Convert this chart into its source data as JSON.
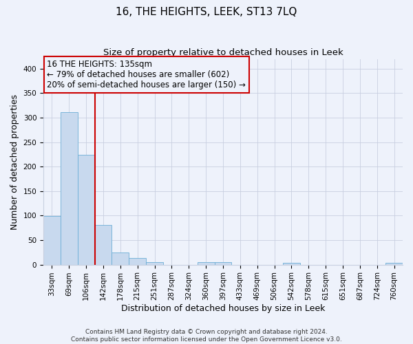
{
  "title": "16, THE HEIGHTS, LEEK, ST13 7LQ",
  "subtitle": "Size of property relative to detached houses in Leek",
  "xlabel": "Distribution of detached houses by size in Leek",
  "ylabel": "Number of detached properties",
  "bar_labels": [
    "33sqm",
    "69sqm",
    "106sqm",
    "142sqm",
    "178sqm",
    "215sqm",
    "251sqm",
    "287sqm",
    "324sqm",
    "360sqm",
    "397sqm",
    "433sqm",
    "469sqm",
    "506sqm",
    "542sqm",
    "578sqm",
    "615sqm",
    "651sqm",
    "687sqm",
    "724sqm",
    "760sqm"
  ],
  "bar_values": [
    99,
    311,
    224,
    81,
    25,
    14,
    5,
    0,
    0,
    5,
    5,
    0,
    0,
    0,
    4,
    0,
    0,
    0,
    0,
    0,
    4
  ],
  "bar_color": "#c8d9ee",
  "bar_edgecolor": "#6baed6",
  "vline_color": "#cc0000",
  "annotation_text": "16 THE HEIGHTS: 135sqm\n← 79% of detached houses are smaller (602)\n20% of semi-detached houses are larger (150) →",
  "annotation_box_edgecolor": "#cc0000",
  "ylim": [
    0,
    420
  ],
  "yticks": [
    0,
    50,
    100,
    150,
    200,
    250,
    300,
    350,
    400
  ],
  "footer_text": "Contains HM Land Registry data © Crown copyright and database right 2024.\nContains public sector information licensed under the Open Government Licence v3.0.",
  "bg_color": "#eef2fb",
  "grid_color": "#c8cfe0",
  "title_fontsize": 11,
  "subtitle_fontsize": 9.5,
  "axis_label_fontsize": 9,
  "tick_fontsize": 7.5,
  "annotation_fontsize": 8.5,
  "footer_fontsize": 6.5
}
